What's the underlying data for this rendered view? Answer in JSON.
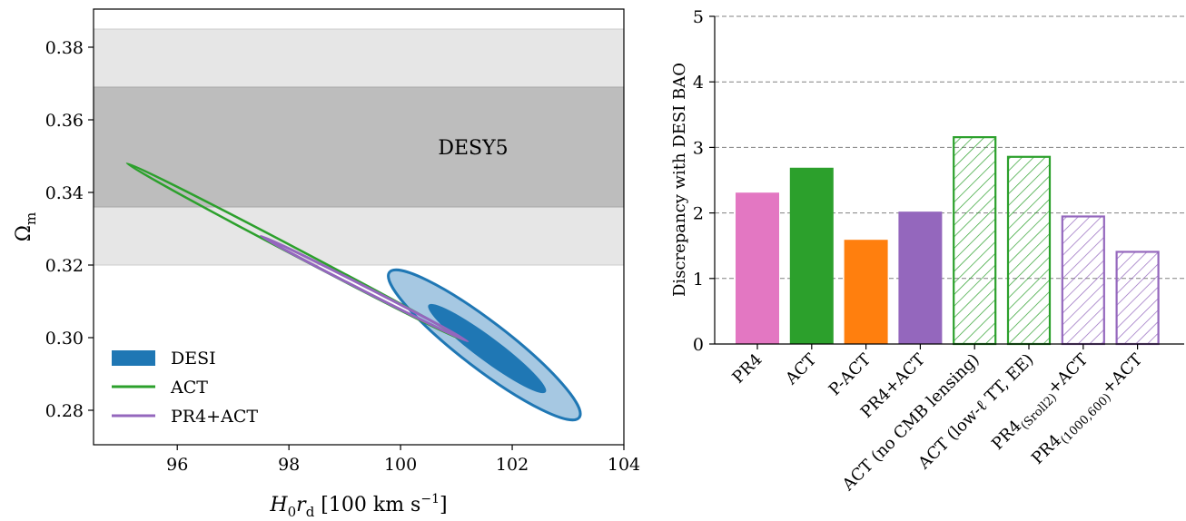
{
  "chart_data": [
    {
      "type": "contour",
      "xlabel_main": "H",
      "xlabel_sub1": "0",
      "xlabel_mid": "r",
      "xlabel_sub2": "d",
      "xlabel_unit": " [100 km s",
      "xlabel_exp": "−1",
      "xlabel_close": "]",
      "ylabel_main": "Ω",
      "ylabel_sub": "m",
      "xlim": [
        94.5,
        104
      ],
      "ylim": [
        0.2705,
        0.3905
      ],
      "xticks": [
        96,
        98,
        100,
        102,
        104
      ],
      "xtick_labels": [
        "96",
        "98",
        "100",
        "102",
        "104"
      ],
      "yticks": [
        0.28,
        0.3,
        0.32,
        0.34,
        0.36,
        0.38
      ],
      "ytick_labels": [
        "0.28",
        "0.30",
        "0.32",
        "0.34",
        "0.36",
        "0.38"
      ],
      "bands": {
        "label": "DESY5",
        "sigma1": [
          0.336,
          0.369
        ],
        "sigma2": [
          0.32,
          0.385
        ]
      },
      "series": [
        {
          "name": "DESI",
          "color": "#1f77b4",
          "fill_inner": "#1f77b4",
          "fill_outer": "#a6c8e2",
          "center": [
            101.5,
            0.297
          ],
          "outer_contour": [
            [
              99.8,
              0.318
            ],
            [
              103.2,
              0.278
            ]
          ],
          "inner_contour": [
            [
              100.5,
              0.309
            ],
            [
              102.6,
              0.285
            ]
          ]
        },
        {
          "name": "ACT",
          "color": "#2ca02c",
          "contour_extent": [
            [
              95.1,
              0.348
            ],
            [
              101.1,
              0.2995
            ]
          ]
        },
        {
          "name": "PR4+ACT",
          "color": "#9467bd",
          "contour_extent": [
            [
              97.5,
              0.328
            ],
            [
              101.2,
              0.299
            ]
          ]
        }
      ],
      "legend": [
        "DESI",
        "ACT",
        "PR4+ACT"
      ]
    },
    {
      "type": "bar",
      "ylabel": "Discrepancy with DESI BAO",
      "ylim": [
        0,
        5
      ],
      "yticks": [
        0,
        1,
        2,
        3,
        4,
        5
      ],
      "ytick_labels": [
        "0",
        "1",
        "2",
        "3",
        "4",
        "5"
      ],
      "grid": "horizontal dashed",
      "categories": [
        "PR4",
        "ACT",
        "P-ACT",
        "PR4+ACT",
        "ACT (no CMB lensing)",
        "ACT (low-ℓ TT, EE)",
        "PR4(Sroll2)+ACT",
        "PR4(1000,600)+ACT"
      ],
      "category_parts": [
        {
          "main": "PR4"
        },
        {
          "main": "ACT"
        },
        {
          "main": "P-ACT"
        },
        {
          "main": "PR4+ACT"
        },
        {
          "main": "ACT (no CMB lensing)"
        },
        {
          "main": "ACT (low-ℓ TT, EE)"
        },
        {
          "main": "PR4",
          "sub": "(Sroll2)",
          "tail": "+ACT"
        },
        {
          "main": "PR4",
          "sub": "(1000,600)",
          "tail": "+ACT"
        }
      ],
      "values": [
        2.31,
        2.69,
        1.59,
        2.02,
        3.17,
        2.87,
        1.96,
        1.42
      ],
      "colors": [
        "#e377c2",
        "#2ca02c",
        "#ff7f0e",
        "#9467bd",
        "#2ca02c",
        "#2ca02c",
        "#9467bd",
        "#9467bd"
      ],
      "hatched": [
        false,
        false,
        false,
        false,
        true,
        true,
        true,
        true
      ]
    }
  ]
}
